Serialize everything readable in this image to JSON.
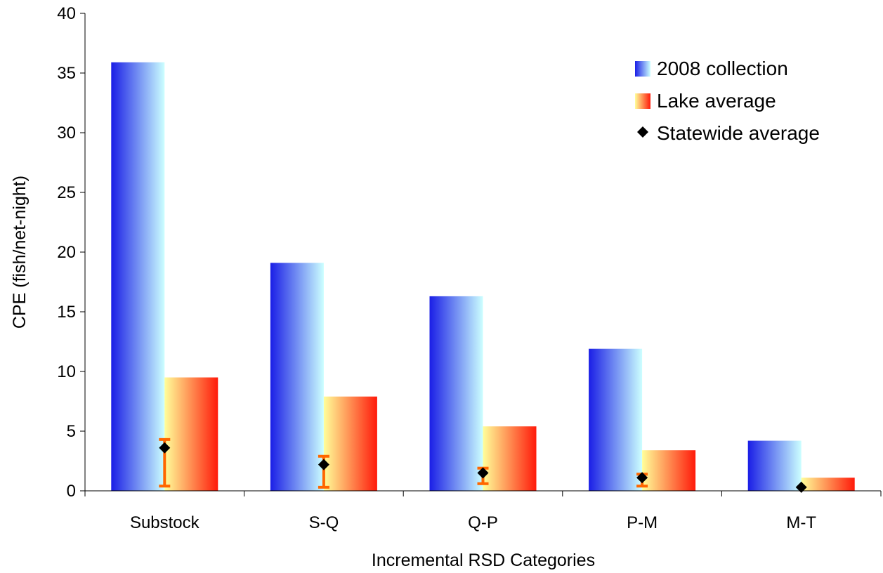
{
  "chart_data": {
    "type": "bar",
    "title": "",
    "xlabel": "Incremental RSD Categories",
    "ylabel": "CPE (fish/net-night)",
    "ylim": [
      0,
      40
    ],
    "yticks": [
      0,
      5,
      10,
      15,
      20,
      25,
      30,
      35,
      40
    ],
    "grid": false,
    "legend_position": "top-right",
    "categories": [
      "Substock",
      "S-Q",
      "Q-P",
      "P-M",
      "M-T"
    ],
    "series": [
      {
        "name": "2008 collection",
        "type": "bar",
        "values": [
          35.9,
          19.1,
          16.3,
          11.9,
          4.2
        ]
      },
      {
        "name": "Lake average",
        "type": "bar",
        "values": [
          9.5,
          7.9,
          5.4,
          3.4,
          1.1
        ]
      },
      {
        "name": "Statewide average",
        "type": "scatter",
        "marker": "diamond",
        "values": [
          3.6,
          2.2,
          1.5,
          1.1,
          0.3
        ],
        "error_low": [
          0.4,
          0.3,
          0.6,
          0.4,
          0.3
        ],
        "error_high": [
          4.3,
          2.9,
          1.9,
          1.4,
          0.3
        ]
      }
    ],
    "colors": {
      "collection_dark": "#1a1ee6",
      "collection_light": "#ccffff",
      "lake_light": "#ffff99",
      "lake_dark": "#ff1a0a",
      "marker": "#000000",
      "error_bar": "#ff6600",
      "axis": "#000000"
    }
  }
}
